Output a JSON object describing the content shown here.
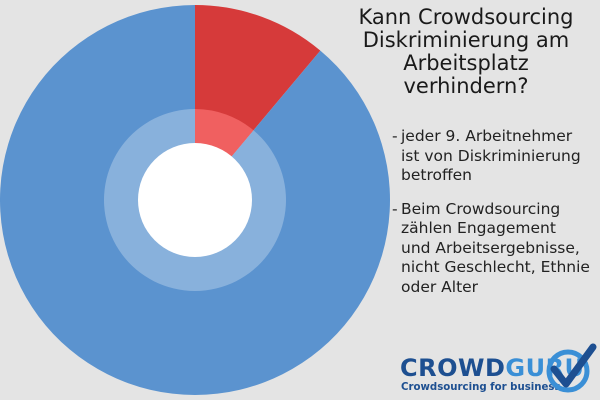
{
  "title_lines": [
    "Kann Crowdsourcing",
    "Diskriminierung am",
    "Arbeitsplatz verhindern?"
  ],
  "bullets": [
    {
      "dash": "-",
      "lines": [
        "jeder 9. Arbeitnehmer",
        "ist von Diskriminierung",
        "betroffen"
      ]
    },
    {
      "dash": "-",
      "lines": [
        "Beim Crowdsourcing",
        "zählen Engagement",
        "und Arbeitsergebnisse,",
        "nicht Geschlecht, Ethnie",
        "oder Alter"
      ]
    }
  ],
  "logo": {
    "word_part1": "CROWD",
    "word_part2": "GURU",
    "tagline": "Crowdsourcing for business."
  },
  "colors": {
    "background": "#e4e4e4",
    "blue": "#5b93cf",
    "red": "#d63a3a",
    "inner_red": "#f06060",
    "logo_dark": "#1d4f91",
    "logo_light": "#3a8fd6"
  },
  "chart_data": {
    "type": "pie",
    "style": "donut",
    "slices": [
      {
        "value": 1,
        "color": "#d63a3a"
      },
      {
        "value": 8,
        "color": "#5b93cf"
      }
    ],
    "start_angle_deg": 0,
    "direction": "clockwise"
  }
}
